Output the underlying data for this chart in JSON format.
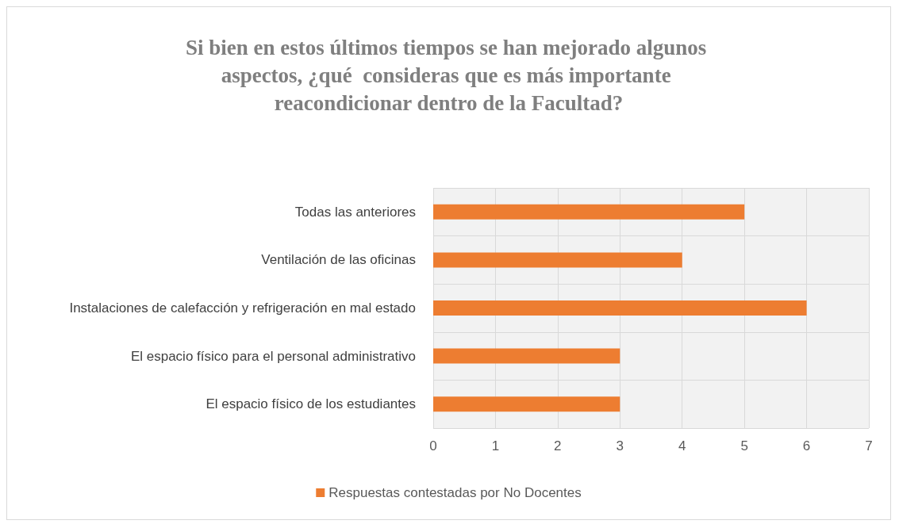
{
  "chart_data": {
    "type": "bar",
    "orientation": "horizontal",
    "title": "Si bien en estos últimos tiempos se han mejorado algunos aspectos, ¿qué  consideras que es más importante reacondicionar dentro de la Facultad?",
    "categories": [
      "Todas las anteriores",
      "Ventilación de las oficinas",
      "Instalaciones de calefacción y refrigeración en mal estado",
      "El espacio físico para el personal administrativo",
      "El espacio físico de los estudiantes"
    ],
    "series": [
      {
        "name": "Respuestas contestadas por No Docentes",
        "color": "#ed7d31",
        "values": [
          5,
          4,
          6,
          3,
          3
        ]
      }
    ],
    "xlim": [
      0,
      7
    ],
    "xticks": [
      0,
      1,
      2,
      3,
      4,
      5,
      6,
      7
    ],
    "grid": true,
    "legend": "bottom"
  }
}
